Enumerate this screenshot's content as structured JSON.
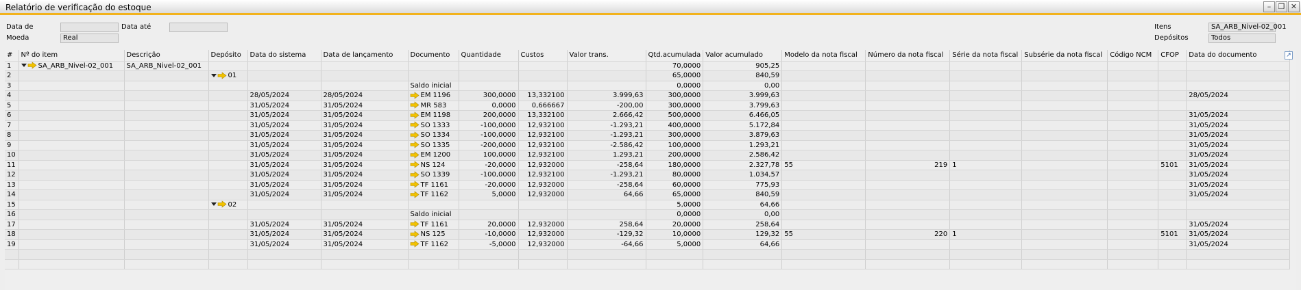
{
  "window": {
    "title": "Relatório de verificação do estoque"
  },
  "filters": {
    "data_de_label": "Data de",
    "data_ate_label": "Data até",
    "moeda_label": "Moeda",
    "moeda_value": "Real",
    "itens_label": "Itens",
    "itens_value": "SA_ARB_Nivel-02_001",
    "depositos_label": "Depósitos",
    "depositos_value": "Todos"
  },
  "columns": [
    "#",
    "Nº do item",
    "Descrição",
    "Depósito",
    "Data do sistema",
    "Data de lançamento",
    "Documento",
    "Quantidade",
    "Custos",
    "Valor trans.",
    "Qtd.acumulada",
    "Valor acumulado",
    "Modelo da nota fiscal",
    "Número da nota fiscal",
    "Série da nota fiscal",
    "Subsérie da nota fiscal",
    "Código NCM",
    "CFOP",
    "Data do documento"
  ],
  "rows": [
    {
      "n": "1",
      "item": "SA_ARB_Nivel-02_001",
      "item_expand": true,
      "desc": "SA_ARB_Nivel-02_001",
      "dep": "",
      "dsys": "",
      "dlan": "",
      "doc": "",
      "doc_arrow": false,
      "qtd": "",
      "cus": "",
      "vt": "",
      "qa": "70,0000",
      "va": "905,25",
      "mod": "",
      "num": "",
      "ser": "",
      "sub": "",
      "ncm": "",
      "cfop": "",
      "ddoc": ""
    },
    {
      "n": "2",
      "item": "",
      "desc": "",
      "dep": "01",
      "dep_expand": true,
      "dsys": "",
      "dlan": "",
      "doc": "",
      "doc_arrow": false,
      "qtd": "",
      "cus": "",
      "vt": "",
      "qa": "65,0000",
      "va": "840,59",
      "mod": "",
      "num": "",
      "ser": "",
      "sub": "",
      "ncm": "",
      "cfop": "",
      "ddoc": ""
    },
    {
      "n": "3",
      "item": "",
      "desc": "",
      "dep": "",
      "dsys": "",
      "dlan": "",
      "doc": "Saldo inicial",
      "doc_arrow": false,
      "qtd": "",
      "cus": "",
      "vt": "",
      "qa": "0,0000",
      "va": "0,00",
      "mod": "",
      "num": "",
      "ser": "",
      "sub": "",
      "ncm": "",
      "cfop": "",
      "ddoc": ""
    },
    {
      "n": "4",
      "item": "",
      "desc": "",
      "dep": "",
      "dsys": "28/05/2024",
      "dlan": "28/05/2024",
      "doc": "EM 1196",
      "doc_arrow": true,
      "qtd": "300,0000",
      "cus": "13,332100",
      "vt": "3.999,63",
      "qa": "300,0000",
      "va": "3.999,63",
      "mod": "",
      "num": "",
      "ser": "",
      "sub": "",
      "ncm": "",
      "cfop": "",
      "ddoc": "28/05/2024"
    },
    {
      "n": "5",
      "item": "",
      "desc": "",
      "dep": "",
      "dsys": "31/05/2024",
      "dlan": "31/05/2024",
      "doc": "MR 583",
      "doc_arrow": true,
      "qtd": "0,0000",
      "cus": "0,666667",
      "vt": "-200,00",
      "qa": "300,0000",
      "va": "3.799,63",
      "mod": "",
      "num": "",
      "ser": "",
      "sub": "",
      "ncm": "",
      "cfop": "",
      "ddoc": ""
    },
    {
      "n": "6",
      "item": "",
      "desc": "",
      "dep": "",
      "dsys": "31/05/2024",
      "dlan": "31/05/2024",
      "doc": "EM 1198",
      "doc_arrow": true,
      "qtd": "200,0000",
      "cus": "13,332100",
      "vt": "2.666,42",
      "qa": "500,0000",
      "va": "6.466,05",
      "mod": "",
      "num": "",
      "ser": "",
      "sub": "",
      "ncm": "",
      "cfop": "",
      "ddoc": "31/05/2024"
    },
    {
      "n": "7",
      "item": "",
      "desc": "",
      "dep": "",
      "dsys": "31/05/2024",
      "dlan": "31/05/2024",
      "doc": "SO 1333",
      "doc_arrow": true,
      "qtd": "-100,0000",
      "cus": "12,932100",
      "vt": "-1.293,21",
      "qa": "400,0000",
      "va": "5.172,84",
      "mod": "",
      "num": "",
      "ser": "",
      "sub": "",
      "ncm": "",
      "cfop": "",
      "ddoc": "31/05/2024"
    },
    {
      "n": "8",
      "item": "",
      "desc": "",
      "dep": "",
      "dsys": "31/05/2024",
      "dlan": "31/05/2024",
      "doc": "SO 1334",
      "doc_arrow": true,
      "qtd": "-100,0000",
      "cus": "12,932100",
      "vt": "-1.293,21",
      "qa": "300,0000",
      "va": "3.879,63",
      "mod": "",
      "num": "",
      "ser": "",
      "sub": "",
      "ncm": "",
      "cfop": "",
      "ddoc": "31/05/2024"
    },
    {
      "n": "9",
      "item": "",
      "desc": "",
      "dep": "",
      "dsys": "31/05/2024",
      "dlan": "31/05/2024",
      "doc": "SO 1335",
      "doc_arrow": true,
      "qtd": "-200,0000",
      "cus": "12,932100",
      "vt": "-2.586,42",
      "qa": "100,0000",
      "va": "1.293,21",
      "mod": "",
      "num": "",
      "ser": "",
      "sub": "",
      "ncm": "",
      "cfop": "",
      "ddoc": "31/05/2024"
    },
    {
      "n": "10",
      "item": "",
      "desc": "",
      "dep": "",
      "dsys": "31/05/2024",
      "dlan": "31/05/2024",
      "doc": "EM 1200",
      "doc_arrow": true,
      "qtd": "100,0000",
      "cus": "12,932100",
      "vt": "1.293,21",
      "qa": "200,0000",
      "va": "2.586,42",
      "mod": "",
      "num": "",
      "ser": "",
      "sub": "",
      "ncm": "",
      "cfop": "",
      "ddoc": "31/05/2024"
    },
    {
      "n": "11",
      "item": "",
      "desc": "",
      "dep": "",
      "dsys": "31/05/2024",
      "dlan": "31/05/2024",
      "doc": "NS 124",
      "doc_arrow": true,
      "qtd": "-20,0000",
      "cus": "12,932000",
      "vt": "-258,64",
      "qa": "180,0000",
      "va": "2.327,78",
      "mod": "55",
      "num": "219",
      "ser": "1",
      "sub": "",
      "ncm": "",
      "cfop": "5101",
      "ddoc": "31/05/2024"
    },
    {
      "n": "12",
      "item": "",
      "desc": "",
      "dep": "",
      "dsys": "31/05/2024",
      "dlan": "31/05/2024",
      "doc": "SO 1339",
      "doc_arrow": true,
      "qtd": "-100,0000",
      "cus": "12,932100",
      "vt": "-1.293,21",
      "qa": "80,0000",
      "va": "1.034,57",
      "mod": "",
      "num": "",
      "ser": "",
      "sub": "",
      "ncm": "",
      "cfop": "",
      "ddoc": "31/05/2024"
    },
    {
      "n": "13",
      "item": "",
      "desc": "",
      "dep": "",
      "dsys": "31/05/2024",
      "dlan": "31/05/2024",
      "doc": "TF 1161",
      "doc_arrow": true,
      "qtd": "-20,0000",
      "cus": "12,932000",
      "vt": "-258,64",
      "qa": "60,0000",
      "va": "775,93",
      "mod": "",
      "num": "",
      "ser": "",
      "sub": "",
      "ncm": "",
      "cfop": "",
      "ddoc": "31/05/2024"
    },
    {
      "n": "14",
      "item": "",
      "desc": "",
      "dep": "",
      "dsys": "31/05/2024",
      "dlan": "31/05/2024",
      "doc": "TF 1162",
      "doc_arrow": true,
      "qtd": "5,0000",
      "cus": "12,932000",
      "vt": "64,66",
      "qa": "65,0000",
      "va": "840,59",
      "mod": "",
      "num": "",
      "ser": "",
      "sub": "",
      "ncm": "",
      "cfop": "",
      "ddoc": "31/05/2024"
    },
    {
      "n": "15",
      "item": "",
      "desc": "",
      "dep": "02",
      "dep_expand": true,
      "dsys": "",
      "dlan": "",
      "doc": "",
      "doc_arrow": false,
      "qtd": "",
      "cus": "",
      "vt": "",
      "qa": "5,0000",
      "va": "64,66",
      "mod": "",
      "num": "",
      "ser": "",
      "sub": "",
      "ncm": "",
      "cfop": "",
      "ddoc": ""
    },
    {
      "n": "16",
      "item": "",
      "desc": "",
      "dep": "",
      "dsys": "",
      "dlan": "",
      "doc": "Saldo inicial",
      "doc_arrow": false,
      "qtd": "",
      "cus": "",
      "vt": "",
      "qa": "0,0000",
      "va": "0,00",
      "mod": "",
      "num": "",
      "ser": "",
      "sub": "",
      "ncm": "",
      "cfop": "",
      "ddoc": ""
    },
    {
      "n": "17",
      "item": "",
      "desc": "",
      "dep": "",
      "dsys": "31/05/2024",
      "dlan": "31/05/2024",
      "doc": "TF 1161",
      "doc_arrow": true,
      "qtd": "20,0000",
      "cus": "12,932000",
      "vt": "258,64",
      "qa": "20,0000",
      "va": "258,64",
      "mod": "",
      "num": "",
      "ser": "",
      "sub": "",
      "ncm": "",
      "cfop": "",
      "ddoc": "31/05/2024"
    },
    {
      "n": "18",
      "item": "",
      "desc": "",
      "dep": "",
      "dsys": "31/05/2024",
      "dlan": "31/05/2024",
      "doc": "NS 125",
      "doc_arrow": true,
      "qtd": "-10,0000",
      "cus": "12,932000",
      "vt": "-129,32",
      "qa": "10,0000",
      "va": "129,32",
      "mod": "55",
      "num": "220",
      "ser": "1",
      "sub": "",
      "ncm": "",
      "cfop": "5101",
      "ddoc": "31/05/2024"
    },
    {
      "n": "19",
      "item": "",
      "desc": "",
      "dep": "",
      "dsys": "31/05/2024",
      "dlan": "31/05/2024",
      "doc": "TF 1162",
      "doc_arrow": true,
      "qtd": "-5,0000",
      "cus": "12,932000",
      "vt": "-64,66",
      "qa": "5,0000",
      "va": "64,66",
      "mod": "",
      "num": "",
      "ser": "",
      "sub": "",
      "ncm": "",
      "cfop": "",
      "ddoc": "31/05/2024"
    }
  ],
  "colors": {
    "accent": "#f2b21c",
    "arrow": "#f2c200"
  }
}
